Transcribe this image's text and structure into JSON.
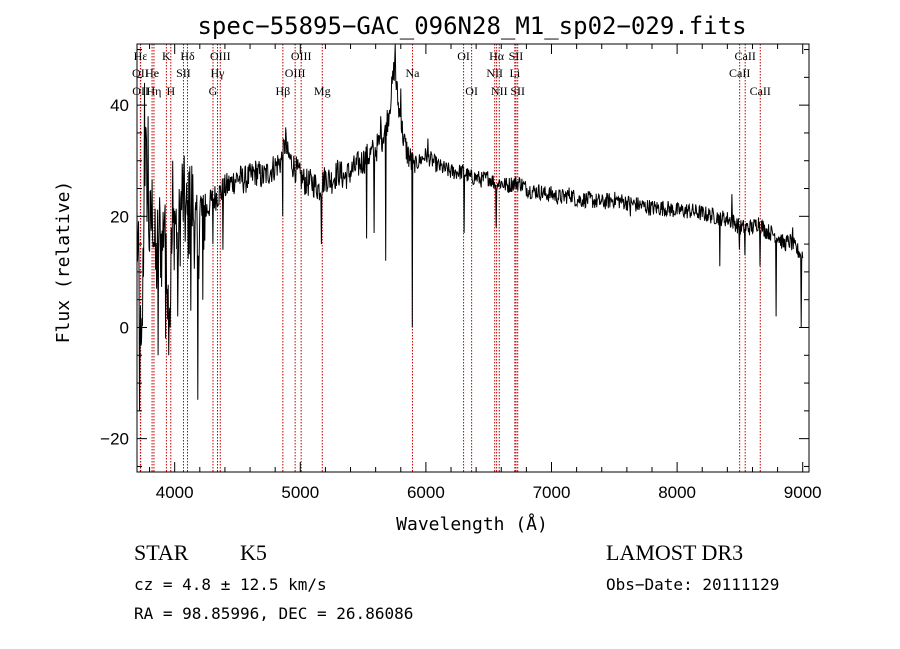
{
  "chart_data": {
    "type": "line",
    "title": "spec−55895−GAC_096N28_M1_sp02−029.fits",
    "xlabel": "Wavelength (Å)",
    "ylabel": "Flux (relative)",
    "xlim": [
      3700,
      9050
    ],
    "ylim": [
      -26,
      51
    ],
    "xticks": [
      {
        "value": 4000,
        "label": "4000"
      },
      {
        "value": 5000,
        "label": "5000"
      },
      {
        "value": 6000,
        "label": "6000"
      },
      {
        "value": 7000,
        "label": "7000"
      },
      {
        "value": 8000,
        "label": "8000"
      },
      {
        "value": 9000,
        "label": "9000"
      }
    ],
    "yticks": [
      {
        "value": -20,
        "label": "−20"
      },
      {
        "value": 0,
        "label": "0"
      },
      {
        "value": 20,
        "label": "20"
      },
      {
        "value": 40,
        "label": "40"
      }
    ],
    "spectral_lines": [
      {
        "label": "Hε",
        "wavelength": 3728,
        "tier": 1
      },
      {
        "label": "OII",
        "wavelength": 3727,
        "tier": 2
      },
      {
        "label": "OII",
        "wavelength": 3729,
        "tier": 3
      },
      {
        "label": "He",
        "wavelength": 3820,
        "tier": 2
      },
      {
        "label": "Hη",
        "wavelength": 3835,
        "tier": 3
      },
      {
        "label": "K",
        "wavelength": 3934,
        "tier": 1
      },
      {
        "label": "H",
        "wavelength": 3969,
        "tier": 3
      },
      {
        "label": "SII",
        "wavelength": 4070,
        "tier": 2
      },
      {
        "label": "Hδ",
        "wavelength": 4102,
        "tier": 1
      },
      {
        "label": "OIII",
        "wavelength": 4363,
        "tier": 1
      },
      {
        "label": "Hγ",
        "wavelength": 4341,
        "tier": 2
      },
      {
        "label": "G",
        "wavelength": 4305,
        "tier": 3
      },
      {
        "label": "Hβ",
        "wavelength": 4861,
        "tier": 3
      },
      {
        "label": "OIII",
        "wavelength": 5007,
        "tier": 1
      },
      {
        "label": "OIII",
        "wavelength": 4959,
        "tier": 2
      },
      {
        "label": "Mg",
        "wavelength": 5175,
        "tier": 3
      },
      {
        "label": "Na",
        "wavelength": 5893,
        "tier": 2
      },
      {
        "label": "OI",
        "wavelength": 6300,
        "tier": 1
      },
      {
        "label": "OI",
        "wavelength": 6364,
        "tier": 3
      },
      {
        "label": "Hα",
        "wavelength": 6563,
        "tier": 1
      },
      {
        "label": "NII",
        "wavelength": 6548,
        "tier": 2
      },
      {
        "label": "NII",
        "wavelength": 6584,
        "tier": 3
      },
      {
        "label": "SII",
        "wavelength": 6717,
        "tier": 1
      },
      {
        "label": "Li",
        "wavelength": 6708,
        "tier": 2
      },
      {
        "label": "SII",
        "wavelength": 6731,
        "tier": 3
      },
      {
        "label": "CaII",
        "wavelength": 8542,
        "tier": 1
      },
      {
        "label": "CaII",
        "wavelength": 8498,
        "tier": 2
      },
      {
        "label": "CaII",
        "wavelength": 8662,
        "tier": 3
      }
    ],
    "series": [
      {
        "name": "flux",
        "anchors": [
          [
            3700,
            18
          ],
          [
            3720,
            5
          ],
          [
            3735,
            -10
          ],
          [
            3750,
            12
          ],
          [
            3765,
            32
          ],
          [
            3780,
            26
          ],
          [
            3800,
            16
          ],
          [
            3825,
            22
          ],
          [
            3850,
            10
          ],
          [
            3875,
            18
          ],
          [
            3900,
            14
          ],
          [
            3925,
            24
          ],
          [
            3950,
            3
          ],
          [
            3970,
            12
          ],
          [
            4000,
            20
          ],
          [
            4030,
            16
          ],
          [
            4060,
            24
          ],
          [
            4100,
            19
          ],
          [
            4140,
            23
          ],
          [
            4180,
            14
          ],
          [
            4200,
            20
          ],
          [
            4250,
            21
          ],
          [
            4300,
            23
          ],
          [
            4350,
            24
          ],
          [
            4400,
            25
          ],
          [
            4450,
            26
          ],
          [
            4500,
            27
          ],
          [
            4550,
            26.5
          ],
          [
            4600,
            27
          ],
          [
            4650,
            28
          ],
          [
            4700,
            27
          ],
          [
            4750,
            28
          ],
          [
            4800,
            29
          ],
          [
            4850,
            30
          ],
          [
            4880,
            33
          ],
          [
            4900,
            31
          ],
          [
            4950,
            29
          ],
          [
            5000,
            27
          ],
          [
            5050,
            26
          ],
          [
            5100,
            26
          ],
          [
            5150,
            25
          ],
          [
            5200,
            27
          ],
          [
            5250,
            26.5
          ],
          [
            5300,
            28
          ],
          [
            5350,
            27
          ],
          [
            5400,
            28
          ],
          [
            5450,
            29
          ],
          [
            5500,
            30
          ],
          [
            5550,
            31
          ],
          [
            5600,
            32
          ],
          [
            5650,
            34
          ],
          [
            5700,
            38
          ],
          [
            5730,
            43
          ],
          [
            5750,
            47
          ],
          [
            5780,
            40
          ],
          [
            5800,
            37
          ],
          [
            5830,
            33
          ],
          [
            5860,
            31
          ],
          [
            5900,
            29
          ],
          [
            5950,
            30
          ],
          [
            6000,
            31
          ],
          [
            6050,
            30
          ],
          [
            6100,
            29
          ],
          [
            6150,
            28.5
          ],
          [
            6200,
            28
          ],
          [
            6250,
            28
          ],
          [
            6300,
            28
          ],
          [
            6350,
            27
          ],
          [
            6400,
            27
          ],
          [
            6450,
            26.5
          ],
          [
            6500,
            27
          ],
          [
            6550,
            26
          ],
          [
            6600,
            26
          ],
          [
            6650,
            25.5
          ],
          [
            6700,
            26
          ],
          [
            6750,
            26
          ],
          [
            6800,
            25
          ],
          [
            6850,
            24.5
          ],
          [
            6900,
            24.5
          ],
          [
            6950,
            24
          ],
          [
            7000,
            24
          ],
          [
            7050,
            23.5
          ],
          [
            7100,
            23.5
          ],
          [
            7150,
            24
          ],
          [
            7200,
            23
          ],
          [
            7300,
            23
          ],
          [
            7400,
            22.5
          ],
          [
            7500,
            23
          ],
          [
            7600,
            22.5
          ],
          [
            7700,
            22
          ],
          [
            7800,
            21.5
          ],
          [
            7900,
            21.5
          ],
          [
            8000,
            21
          ],
          [
            8100,
            21
          ],
          [
            8200,
            20.5
          ],
          [
            8300,
            20
          ],
          [
            8400,
            19.5
          ],
          [
            8450,
            19
          ],
          [
            8500,
            18
          ],
          [
            8600,
            18
          ],
          [
            8650,
            19
          ],
          [
            8700,
            17.5
          ],
          [
            8750,
            17
          ],
          [
            8800,
            16.5
          ],
          [
            8850,
            15
          ],
          [
            8900,
            15.5
          ],
          [
            8950,
            14
          ],
          [
            9000,
            13
          ]
        ],
        "absorption_dips": [
          [
            3720,
            -15
          ],
          [
            3870,
            -5
          ],
          [
            3930,
            -2
          ],
          [
            3965,
            0
          ],
          [
            4025,
            2
          ],
          [
            4130,
            3
          ],
          [
            4185,
            -13
          ],
          [
            4225,
            5
          ],
          [
            4305,
            15
          ],
          [
            4383,
            14
          ],
          [
            4860,
            20
          ],
          [
            5170,
            15
          ],
          [
            5530,
            16
          ],
          [
            5590,
            17
          ],
          [
            5680,
            12
          ],
          [
            5893,
            0
          ],
          [
            6305,
            17
          ],
          [
            6562,
            18
          ],
          [
            7630,
            20
          ],
          [
            8340,
            11
          ],
          [
            8498,
            14
          ],
          [
            8542,
            13
          ],
          [
            8662,
            11
          ],
          [
            8790,
            2
          ],
          [
            8990,
            0
          ]
        ],
        "emission_spikes": [
          [
            3760,
            44
          ],
          [
            3790,
            38
          ],
          [
            3985,
            30
          ],
          [
            4120,
            29
          ],
          [
            4885,
            36
          ],
          [
            5640,
            38
          ],
          [
            5755,
            51
          ],
          [
            5800,
            43
          ],
          [
            6015,
            34
          ],
          [
            8435,
            24
          ],
          [
            8920,
            18
          ]
        ]
      }
    ]
  },
  "footer": {
    "object_class": "STAR",
    "subclass": "K5",
    "redshift_text": "cz = 4.8 ± 12.5 km/s",
    "coords_text": "RA =  98.85996, DEC =  26.86086",
    "survey": "LAMOST DR3",
    "obs_date": "Obs−Date: 20111129"
  }
}
